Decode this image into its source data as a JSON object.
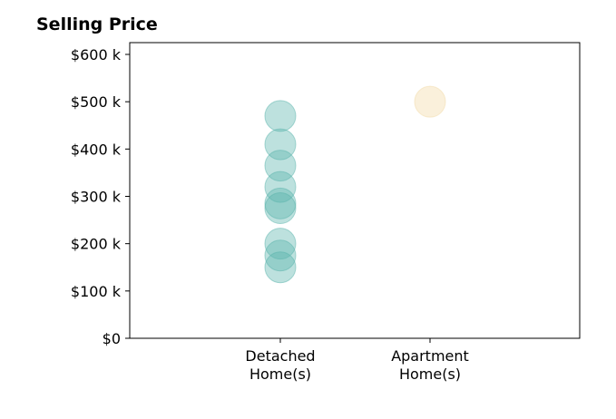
{
  "chart_data": {
    "type": "scatter",
    "title": "Selling Price",
    "xlabel": "",
    "ylabel": "",
    "categories": [
      [
        "Detached",
        "Home(s)"
      ],
      [
        "Apartment",
        "Home(s)"
      ]
    ],
    "ylim": [
      0,
      600000
    ],
    "yticks": [
      0,
      100000,
      200000,
      300000,
      400000,
      500000,
      600000
    ],
    "ytick_labels": [
      "$0",
      "$100 k",
      "$200 k",
      "$300 k",
      "$400 k",
      "$500 k",
      "$600 k"
    ],
    "grid": false,
    "series": [
      {
        "category": 0,
        "color": "#5ab4ac",
        "values": [
          470000,
          410000,
          365000,
          320000,
          285000,
          275000,
          200000,
          175000,
          150000
        ]
      },
      {
        "category": 1,
        "color": "#f2d9a6",
        "values": [
          500000
        ]
      }
    ]
  }
}
